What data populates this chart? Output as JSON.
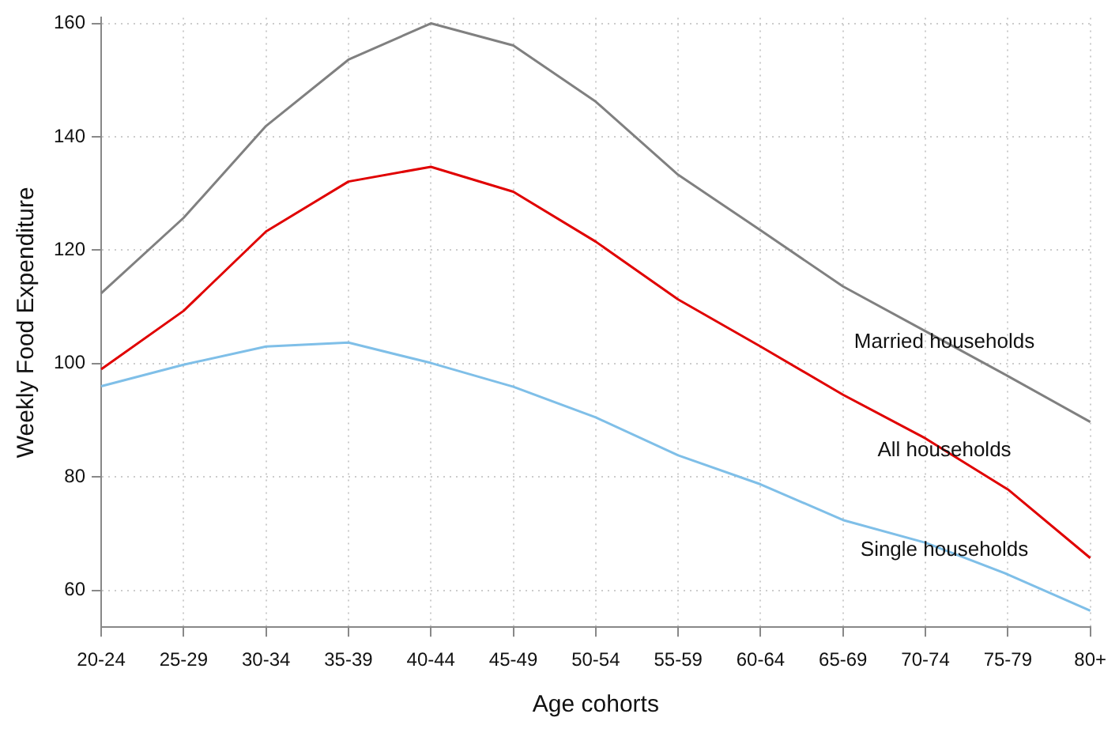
{
  "chart_data": {
    "type": "line",
    "xlabel": "Age cohorts",
    "ylabel": "Weekly Food Expenditure",
    "categories": [
      "20-24",
      "25-29",
      "30-34",
      "35-39",
      "40-44",
      "45-49",
      "50-54",
      "55-59",
      "60-64",
      "65-69",
      "70-74",
      "75-79",
      "80+"
    ],
    "series": [
      {
        "name": "Married households",
        "color": "#808080",
        "values": [
          112.4,
          125.7,
          141.9,
          153.6,
          160,
          156.1,
          146.2,
          133.3,
          123.5,
          113.6,
          105.7,
          97.8,
          89.7
        ]
      },
      {
        "name": "All households",
        "color": "#e00000",
        "values": [
          99.0,
          109.3,
          123.3,
          132.1,
          134.7,
          130.3,
          121.5,
          111.3,
          103.0,
          94.5,
          86.8,
          77.8,
          65.7
        ]
      },
      {
        "name": "Single households",
        "color": "#7fbfe8",
        "values": [
          96.0,
          99.8,
          103.0,
          103.7,
          100.1,
          95.9,
          90.5,
          83.8,
          78.7,
          72.4,
          68.4,
          62.8,
          56.4
        ]
      }
    ],
    "ylim": [
      53.5,
      161
    ],
    "yticks": [
      60,
      80,
      100,
      120,
      140,
      160
    ],
    "grid": true,
    "legend": false,
    "marker": "none",
    "line_style": "solid"
  }
}
